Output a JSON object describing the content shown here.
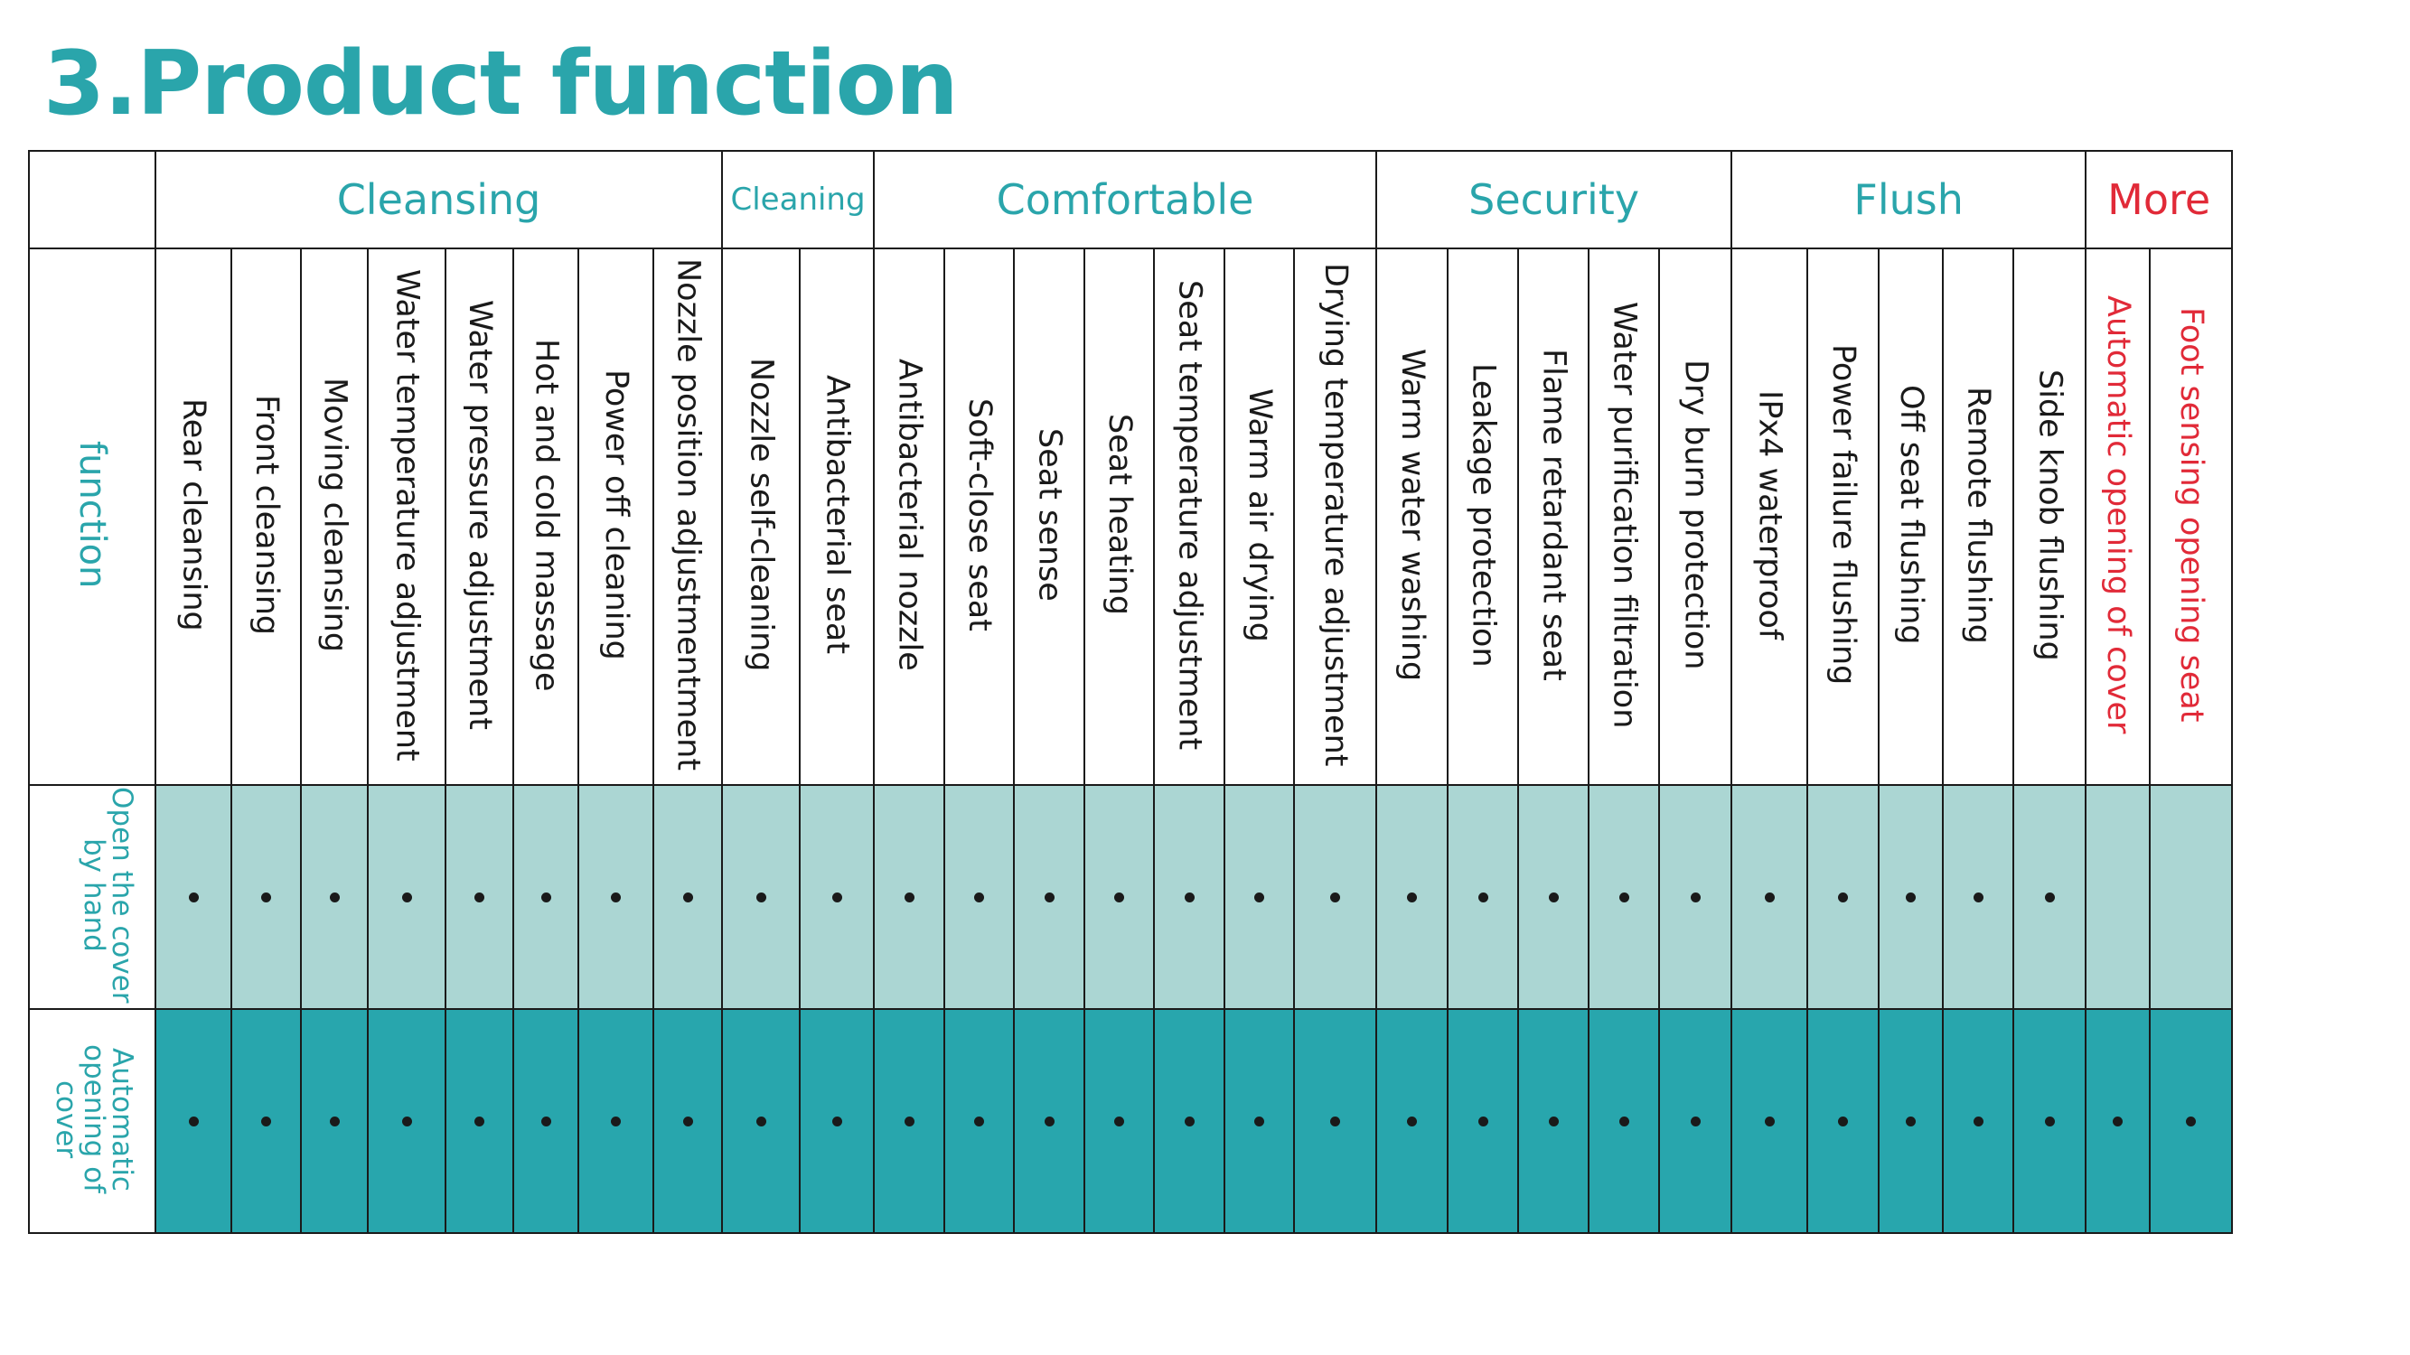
{
  "title": "3.Product function",
  "colors": {
    "teal": "#2aa5ab",
    "red": "#e12a38",
    "row1_bg": "#abd6d3",
    "row2_bg": "#28a6ad"
  },
  "categories": [
    {
      "label": "Cleansing",
      "span": 8,
      "style": "normal"
    },
    {
      "label": "Cleaning",
      "span": 2,
      "style": "small"
    },
    {
      "label": "Comfortable",
      "span": 7,
      "style": "normal"
    },
    {
      "label": "Security",
      "span": 5,
      "style": "normal"
    },
    {
      "label": "Flush",
      "span": 5,
      "style": "normal"
    },
    {
      "label": "More",
      "span": 2,
      "style": "red"
    }
  ],
  "function_label": "function",
  "features": [
    {
      "label": "Rear cleansing"
    },
    {
      "label": "Front cleansing"
    },
    {
      "label": "Moving cleansing"
    },
    {
      "label": "Water temperature adjustment"
    },
    {
      "label": "Water pressure adjustment"
    },
    {
      "label": "Hot and cold massage"
    },
    {
      "label": "Power off cleaning"
    },
    {
      "label": "Nozzle position adjustmentment"
    },
    {
      "label": "Nozzle self-cleaning"
    },
    {
      "label": "Antibacterial seat"
    },
    {
      "label": "Antibacterial nozzle"
    },
    {
      "label": "Soft-close seat"
    },
    {
      "label": "Seat sense"
    },
    {
      "label": "Seat heating"
    },
    {
      "label": "Seat temperature adjustment"
    },
    {
      "label": "Warm air drying"
    },
    {
      "label": "Drying temperature adjustment"
    },
    {
      "label": "Warm water washing"
    },
    {
      "label": "Leakage protection"
    },
    {
      "label": "Flame retardant seat"
    },
    {
      "label": "Water purification filtration"
    },
    {
      "label": "Dry burn protection"
    },
    {
      "label": "IPx4 waterproof"
    },
    {
      "label": "Power failure flushing"
    },
    {
      "label": "Off seat flushing"
    },
    {
      "label": "Remote flushing"
    },
    {
      "label": "Side knob flushing"
    },
    {
      "label": "Automatic opening of cover",
      "red": true
    },
    {
      "label": "Foot sensing opening seat",
      "red": true
    }
  ],
  "models": [
    {
      "label": "Open the cover by hand",
      "has": [
        true,
        true,
        true,
        true,
        true,
        true,
        true,
        true,
        true,
        true,
        true,
        true,
        true,
        true,
        true,
        true,
        true,
        true,
        true,
        true,
        true,
        true,
        true,
        true,
        true,
        true,
        true,
        false,
        false
      ]
    },
    {
      "label": "Automatic opening of cover",
      "has": [
        true,
        true,
        true,
        true,
        true,
        true,
        true,
        true,
        true,
        true,
        true,
        true,
        true,
        true,
        true,
        true,
        true,
        true,
        true,
        true,
        true,
        true,
        true,
        true,
        true,
        true,
        true,
        true,
        true
      ]
    }
  ]
}
